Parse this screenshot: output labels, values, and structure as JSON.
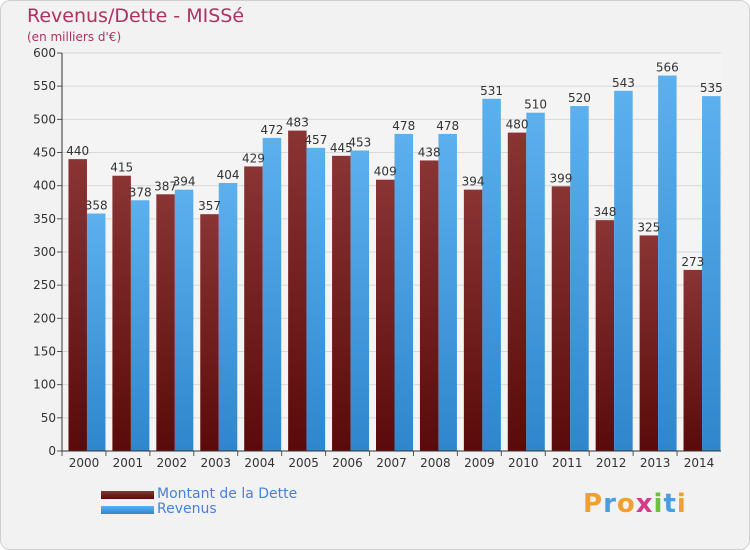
{
  "header": {
    "title": "Revenus/Dette - MISSé",
    "subtitle": "(en milliers d'€)"
  },
  "logo": {
    "letters": [
      "P",
      "r",
      "o",
      "x",
      "i",
      "t",
      "i"
    ],
    "colors": [
      "#f0a030",
      "#4a9ee0",
      "#f0a030",
      "#d63a8a",
      "#6cc040",
      "#4a9ee0",
      "#f0a030"
    ]
  },
  "chart_data": {
    "type": "bar",
    "categories": [
      "2000",
      "2001",
      "2002",
      "2003",
      "2004",
      "2005",
      "2006",
      "2007",
      "2008",
      "2009",
      "2010",
      "2011",
      "2012",
      "2013",
      "2014"
    ],
    "series": [
      {
        "name": "Montant de la Dette",
        "color": "#7a2a2a",
        "values": [
          440,
          415,
          387,
          357,
          429,
          483,
          445,
          409,
          438,
          394,
          480,
          399,
          348,
          325,
          273
        ]
      },
      {
        "name": "Revenus",
        "color": "#4a9ee0",
        "values": [
          358,
          378,
          394,
          404,
          472,
          457,
          453,
          478,
          478,
          531,
          510,
          520,
          543,
          566,
          535
        ]
      }
    ],
    "ylim": [
      0,
      600
    ],
    "yticks": [
      0,
      50,
      100,
      150,
      200,
      250,
      300,
      350,
      400,
      450,
      500,
      550,
      600
    ],
    "grid": true,
    "legend_position": "bottom-left"
  }
}
